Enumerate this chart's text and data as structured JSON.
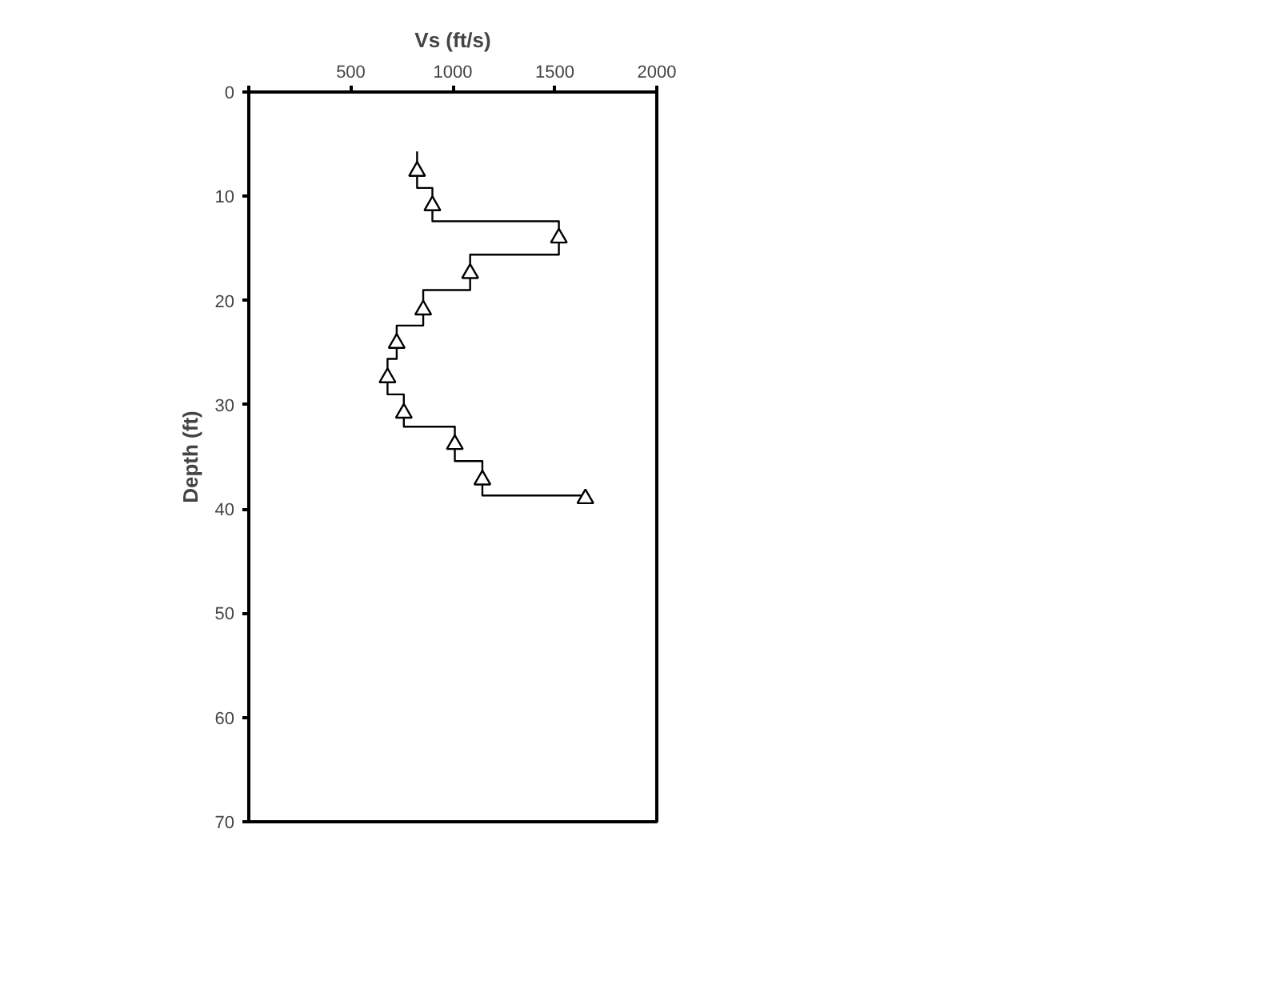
{
  "chart_data": {
    "type": "line",
    "xlabel": "Vs (ft/s)",
    "ylabel": "Depth (ft)",
    "xlim": [
      0,
      2000
    ],
    "xticks": [
      {
        "value": 0,
        "label": null
      },
      500,
      1000,
      1500,
      2000
    ],
    "ylim": [
      70,
      0
    ],
    "yticks": [
      0,
      10,
      20,
      30,
      40,
      50,
      60,
      70
    ],
    "grid": false,
    "series": [
      {
        "color": "#000000",
        "marker": "none",
        "line_style": "solid",
        "x": [
          825,
          825,
          900,
          900,
          1520,
          1520,
          1085,
          1085,
          855,
          855,
          725,
          725,
          680,
          680,
          760,
          760,
          1010,
          1010,
          1145,
          1145,
          1650
        ],
        "values": [
          5.7,
          9.2,
          9.2,
          12.4,
          12.4,
          15.6,
          15.6,
          19.0,
          19.0,
          22.4,
          22.4,
          25.6,
          25.6,
          29.0,
          29.0,
          32.1,
          32.1,
          35.4,
          35.4,
          38.7,
          38.7
        ]
      },
      {
        "type": "scatter",
        "color": "#000000",
        "marker": "triangle",
        "x": [
          825,
          900,
          1520,
          1085,
          855,
          725,
          680,
          760,
          1010,
          1145,
          1650
        ],
        "values": [
          7.6,
          10.9,
          14.0,
          17.4,
          20.9,
          24.1,
          27.4,
          30.8,
          33.8,
          37.2,
          39.0
        ]
      }
    ]
  }
}
